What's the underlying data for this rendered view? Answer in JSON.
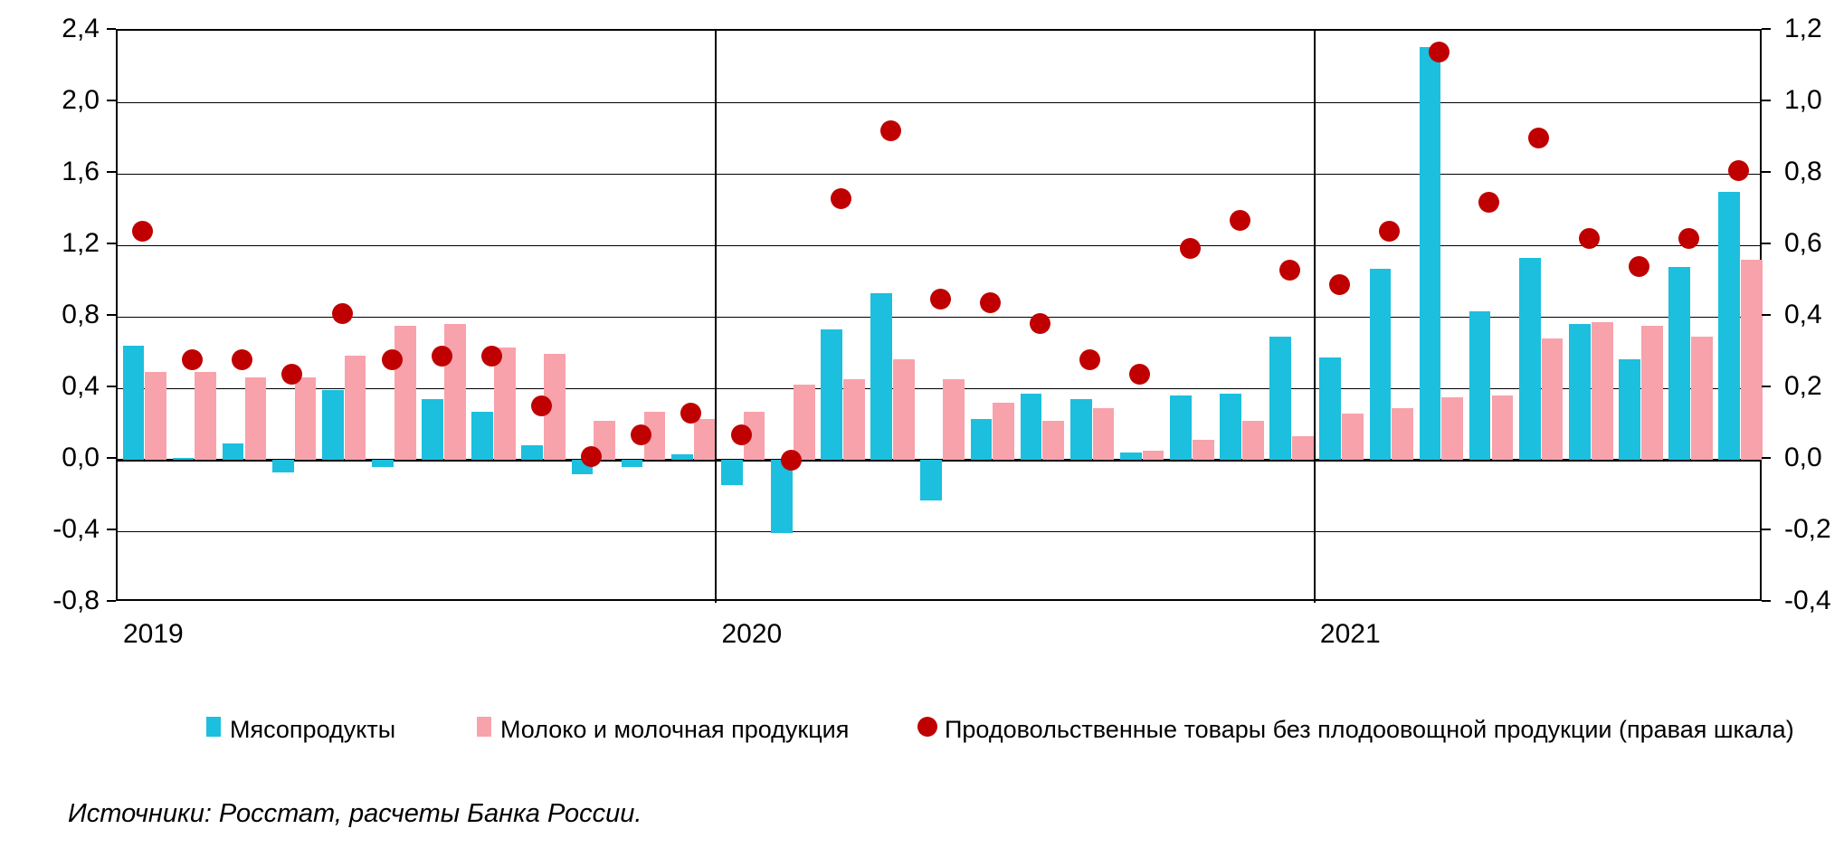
{
  "source": "Источники: Росстат, расчеты Банка России.",
  "legend": {
    "items": [
      {
        "label": "Мясопродукты"
      },
      {
        "label": "Молоко и молочная продукция"
      },
      {
        "label": "Продовольственные товары без плодоовощной продукции (правая шкала)"
      }
    ]
  },
  "axes": {
    "left": {
      "ticks": [
        {
          "label": "2,4",
          "value": 2.4
        },
        {
          "label": "2,0",
          "value": 2.0
        },
        {
          "label": "1,6",
          "value": 1.6
        },
        {
          "label": "1,2",
          "value": 1.2
        },
        {
          "label": "0,8",
          "value": 0.8
        },
        {
          "label": "0,4",
          "value": 0.4
        },
        {
          "label": "0,0",
          "value": 0.0
        },
        {
          "label": "-0,4",
          "value": -0.4
        },
        {
          "label": "-0,8",
          "value": -0.8
        }
      ]
    },
    "right": {
      "ticks": [
        {
          "label": "1,2",
          "value": 1.2
        },
        {
          "label": "1,0",
          "value": 1.0
        },
        {
          "label": "0,8",
          "value": 0.8
        },
        {
          "label": "0,6",
          "value": 0.6
        },
        {
          "label": "0,4",
          "value": 0.4
        },
        {
          "label": "0,2",
          "value": 0.2
        },
        {
          "label": "0,0",
          "value": 0.0
        },
        {
          "label": "-0,2",
          "value": -0.2
        },
        {
          "label": "-0,4",
          "value": -0.4
        }
      ]
    },
    "x": {
      "years": [
        {
          "label": "2019",
          "start_index": 0
        },
        {
          "label": "2020",
          "start_index": 12
        },
        {
          "label": "2021",
          "start_index": 24
        }
      ]
    }
  },
  "colors": {
    "meat": "#1CBFDD",
    "milk": "#F8A2AC",
    "food": "#C00000",
    "grid": "#000000",
    "background": "#FFFFFF"
  },
  "chart_data": {
    "type": "combo",
    "subtype": "grouped bars (left scale) + scatter dots (right scale), monthly Jan 2019 - Sep 2021",
    "categories": [
      "2019-01",
      "2019-02",
      "2019-03",
      "2019-04",
      "2019-05",
      "2019-06",
      "2019-07",
      "2019-08",
      "2019-09",
      "2019-10",
      "2019-11",
      "2019-12",
      "2020-01",
      "2020-02",
      "2020-03",
      "2020-04",
      "2020-05",
      "2020-06",
      "2020-07",
      "2020-08",
      "2020-09",
      "2020-10",
      "2020-11",
      "2020-12",
      "2021-01",
      "2021-02",
      "2021-03",
      "2021-04",
      "2021-05",
      "2021-06",
      "2021-07",
      "2021-08",
      "2021-09"
    ],
    "series": [
      {
        "name": "Мясопродукты",
        "type": "bar",
        "axis": "left",
        "color": "#1CBFDD",
        "values": [
          0.64,
          0.01,
          0.09,
          -0.07,
          0.39,
          -0.04,
          0.34,
          0.27,
          0.08,
          -0.08,
          -0.04,
          0.03,
          -0.14,
          -0.41,
          0.73,
          0.93,
          -0.23,
          0.23,
          0.37,
          0.34,
          0.04,
          0.36,
          0.37,
          0.69,
          0.57,
          1.07,
          2.31,
          0.83,
          1.13,
          0.76,
          0.56,
          1.08,
          1.5
        ]
      },
      {
        "name": "Молоко и молочная продукция",
        "type": "bar",
        "axis": "left",
        "color": "#F8A2AC",
        "values": [
          0.49,
          0.49,
          0.46,
          0.46,
          0.58,
          0.75,
          0.76,
          0.63,
          0.59,
          0.22,
          0.27,
          0.23,
          0.27,
          0.42,
          0.45,
          0.56,
          0.45,
          0.32,
          0.22,
          0.29,
          0.05,
          0.11,
          0.22,
          0.13,
          0.26,
          0.29,
          0.35,
          0.36,
          0.68,
          0.77,
          0.75,
          0.69,
          1.12
        ]
      },
      {
        "name": "Продовольственные товары без плодоовощной продукции (правая шкала)",
        "type": "scatter",
        "axis": "right",
        "color": "#C00000",
        "values": [
          0.64,
          0.28,
          0.28,
          0.24,
          0.41,
          0.28,
          0.29,
          0.29,
          0.15,
          0.01,
          0.07,
          0.13,
          0.07,
          0.0,
          0.73,
          0.92,
          0.45,
          0.44,
          0.38,
          0.28,
          0.24,
          0.59,
          0.67,
          0.53,
          0.49,
          0.64,
          1.14,
          0.72,
          0.9,
          0.62,
          0.54,
          0.62,
          0.81
        ]
      }
    ],
    "left_axis": {
      "min": -0.8,
      "max": 2.4,
      "step": 0.4
    },
    "right_axis": {
      "min": -0.4,
      "max": 1.2,
      "step": 0.2
    },
    "grid": "horizontal gridlines every 0.4 (left scale); heavy line at 0; vertical separators at year boundaries",
    "year_separators_at_index": [
      12,
      24
    ],
    "legend_position": "bottom"
  }
}
